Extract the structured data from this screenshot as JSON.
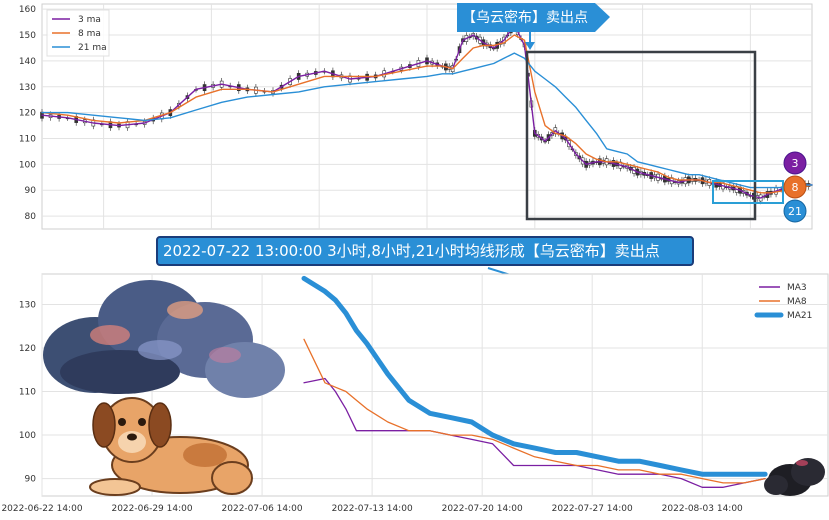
{
  "callout_top": "【乌云密布】卖出点",
  "banner": "2022-07-22 13:00:00 3小时,8小时,21小时均线形成【乌云密布】卖出点",
  "badges": [
    {
      "label": "3",
      "color": "#7b1fa2"
    },
    {
      "label": "8",
      "color": "#e8712a"
    },
    {
      "label": "21",
      "color": "#2a8fd6"
    }
  ],
  "colors": {
    "ma3": "#7b1fa2",
    "ma8": "#e8712a",
    "ma21": "#2a8fd6",
    "frame": "#3a3f45",
    "zoom": "#2a9fd6"
  },
  "illustrations": [
    "storm-cloud",
    "dog",
    "small-dark-cloud"
  ],
  "chart_data": [
    {
      "type": "line",
      "name": "top-candlestick-ma",
      "xlim": [
        0,
        150
      ],
      "ylim": [
        75,
        162
      ],
      "yticks": [
        80,
        90,
        100,
        110,
        120,
        130,
        140,
        150,
        160
      ],
      "grid": true,
      "legend_position": "top-left",
      "series": [
        {
          "name": "3 ma",
          "key": "ma3",
          "width": 1.4,
          "x": [
            0,
            5,
            10,
            15,
            20,
            25,
            30,
            35,
            40,
            45,
            50,
            55,
            60,
            65,
            70,
            75,
            78,
            80,
            82,
            84,
            86,
            88,
            90,
            92,
            94,
            96,
            98,
            100,
            102,
            104,
            106,
            108,
            110,
            112,
            114,
            116,
            118,
            120,
            122,
            124,
            126,
            128,
            130,
            132,
            134,
            136,
            138,
            140,
            142,
            145,
            148,
            150
          ],
          "y": [
            119,
            118,
            116,
            115,
            116,
            120,
            129,
            131,
            129,
            128,
            134,
            136,
            133,
            134,
            137,
            140,
            138,
            137,
            148,
            150,
            147,
            145,
            148,
            154,
            146,
            112,
            109,
            113,
            110,
            104,
            100,
            101,
            101,
            100,
            99,
            97,
            96,
            95,
            94,
            93,
            94,
            94,
            93,
            92,
            91,
            90,
            88,
            87,
            89,
            91,
            92,
            92
          ]
        },
        {
          "name": "8 ma",
          "key": "ma8",
          "width": 1.4,
          "x": [
            0,
            5,
            10,
            15,
            20,
            25,
            30,
            35,
            40,
            45,
            50,
            55,
            60,
            65,
            70,
            75,
            78,
            80,
            82,
            84,
            86,
            88,
            90,
            92,
            94,
            96,
            98,
            100,
            102,
            104,
            106,
            108,
            110,
            112,
            114,
            116,
            118,
            120,
            122,
            124,
            126,
            128,
            130,
            132,
            134,
            136,
            138,
            140,
            142,
            145,
            148,
            150
          ],
          "y": [
            120,
            119,
            117,
            116,
            117,
            120,
            126,
            129,
            129,
            128,
            131,
            134,
            134,
            134,
            136,
            138,
            138,
            137,
            141,
            145,
            146,
            146,
            147,
            150,
            148,
            128,
            115,
            112,
            111,
            108,
            104,
            102,
            101,
            101,
            100,
            99,
            98,
            97,
            95,
            94,
            94,
            94,
            93,
            93,
            92,
            91,
            90,
            89,
            89,
            90,
            91,
            92
          ]
        },
        {
          "name": "21 ma",
          "key": "ma21",
          "width": 1.4,
          "x": [
            0,
            5,
            10,
            15,
            20,
            25,
            30,
            35,
            40,
            45,
            50,
            55,
            60,
            65,
            70,
            75,
            78,
            80,
            82,
            84,
            86,
            88,
            90,
            92,
            94,
            96,
            98,
            100,
            102,
            104,
            106,
            108,
            110,
            112,
            114,
            116,
            118,
            120,
            122,
            124,
            126,
            128,
            130,
            132,
            134,
            136,
            138,
            140,
            142,
            145,
            148,
            150
          ],
          "y": [
            120,
            120,
            119,
            118,
            117,
            118,
            121,
            124,
            126,
            127,
            128,
            130,
            131,
            132,
            133,
            134,
            135,
            135,
            136,
            137,
            138,
            139,
            141,
            143,
            141,
            136,
            133,
            130,
            126,
            122,
            117,
            112,
            106,
            105,
            104,
            101,
            100,
            99,
            98,
            97,
            96,
            96,
            95,
            94,
            93,
            92,
            91,
            91,
            91,
            91,
            92,
            92
          ]
        }
      ]
    },
    {
      "type": "line",
      "name": "bottom-zoom-ma",
      "xlim": [
        0,
        150
      ],
      "ylim": [
        86,
        137
      ],
      "yticks": [
        90,
        100,
        110,
        120,
        130
      ],
      "xticks": [
        {
          "x": 0,
          "label": "2022-06-22 14:00"
        },
        {
          "x": 21,
          "label": "2022-06-29 14:00"
        },
        {
          "x": 42,
          "label": "2022-07-06 14:00"
        },
        {
          "x": 63,
          "label": "2022-07-13 14:00"
        },
        {
          "x": 84,
          "label": "2022-07-20 14:00"
        },
        {
          "x": 105,
          "label": "2022-07-27 14:00"
        },
        {
          "x": 126,
          "label": "2022-08-03 14:00"
        }
      ],
      "grid": true,
      "legend_position": "top-right",
      "series": [
        {
          "name": "MA3",
          "key": "ma3",
          "width": 1.3,
          "x": [
            50,
            54,
            56,
            58,
            60,
            62,
            66,
            70,
            74,
            78,
            82,
            86,
            90,
            94,
            98,
            102,
            106,
            110,
            114,
            118,
            122,
            126,
            130,
            134,
            138
          ],
          "y": [
            112,
            113,
            110,
            106,
            101,
            101,
            101,
            101,
            101,
            100,
            99,
            98,
            93,
            93,
            93,
            93,
            92,
            91,
            91,
            91,
            90,
            88,
            88,
            89,
            90
          ]
        },
        {
          "name": "MA8",
          "key": "ma8",
          "width": 1.3,
          "x": [
            50,
            54,
            56,
            58,
            60,
            62,
            66,
            70,
            74,
            78,
            82,
            86,
            90,
            94,
            98,
            102,
            106,
            110,
            114,
            118,
            122,
            126,
            130,
            134,
            138
          ],
          "y": [
            122,
            112,
            111,
            110,
            108,
            106,
            103,
            101,
            101,
            100,
            100,
            99,
            97,
            95,
            94,
            93,
            93,
            92,
            92,
            91,
            91,
            90,
            89,
            89,
            90
          ]
        },
        {
          "name": "MA21",
          "key": "ma21",
          "width": 5,
          "x": [
            50,
            54,
            56,
            58,
            60,
            62,
            66,
            70,
            74,
            78,
            82,
            86,
            90,
            94,
            98,
            102,
            106,
            110,
            114,
            118,
            122,
            126,
            130,
            134,
            138
          ],
          "y": [
            136,
            133,
            131,
            128,
            124,
            121,
            114,
            108,
            105,
            104,
            103,
            100,
            98,
            97,
            96,
            96,
            95,
            94,
            94,
            93,
            92,
            91,
            91,
            91,
            91
          ]
        }
      ]
    }
  ]
}
